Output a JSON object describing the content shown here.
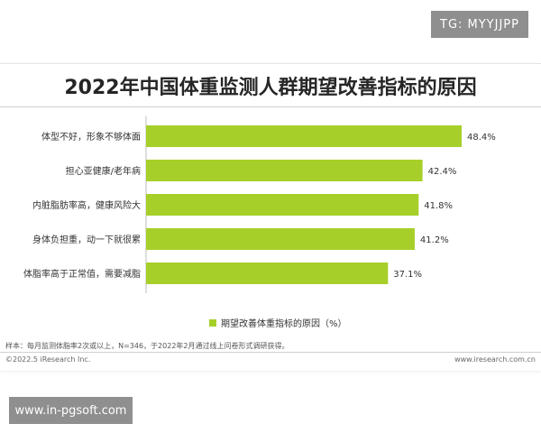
{
  "watermark_top": "TG: MYYJJPP",
  "watermark_bottom": "www.in-pgsoft.com",
  "chart_data": {
    "type": "bar",
    "orientation": "horizontal",
    "title": "2022年中国体重监测人群期望改善指标的原因",
    "categories": [
      "体型不好，形象不够体面",
      "担心亚健康/老年病",
      "内脏脂肪率高，健康风险大",
      "身体负担重，动一下就很累",
      "体脂率高于正常值，需要减脂"
    ],
    "values": [
      48.4,
      42.4,
      41.8,
      41.2,
      37.1
    ],
    "value_labels": [
      "48.4%",
      "42.4%",
      "41.8%",
      "41.2%",
      "37.1%"
    ],
    "series_name": "期望改善体重指标的原因（%）",
    "xlim": [
      0,
      55
    ],
    "color": "#a6cf2a",
    "grid": false
  },
  "note": "样本：每月监测体脂率2次或以上，N=346，于2022年2月通过线上问卷形式调研获得。",
  "copyright": "©2022.5 iResearch Inc.",
  "website": "www.iresearch.com.cn"
}
